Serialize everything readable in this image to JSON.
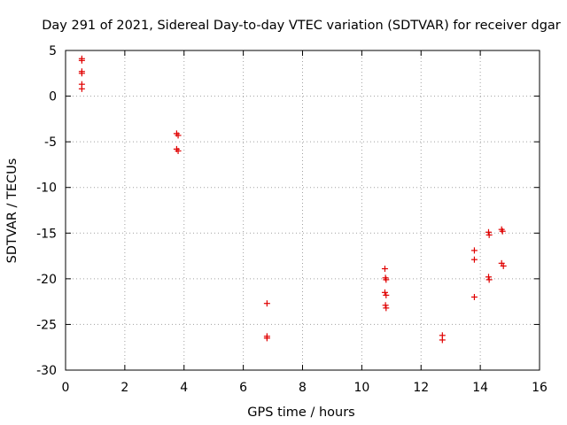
{
  "chart_data": {
    "type": "scatter",
    "title": "Day 291 of 2021, Sidereal Day-to-day VTEC variation (SDTVAR) for receiver dgar",
    "xlabel": "GPS time / hours",
    "ylabel": "SDTVAR / TECUs",
    "xlim": [
      0,
      16
    ],
    "ylim": [
      -30,
      5
    ],
    "xticks": [
      0,
      2,
      4,
      6,
      8,
      10,
      12,
      14,
      16
    ],
    "yticks": [
      -30,
      -25,
      -20,
      -15,
      -10,
      -5,
      0,
      5
    ],
    "xtick_labels": [
      "0",
      "2",
      "4",
      "6",
      "8",
      "10",
      "12",
      "14",
      "16"
    ],
    "ytick_labels": [
      "-30",
      "-25",
      "-20",
      "-15",
      "-10",
      "-5",
      "0",
      "5"
    ],
    "grid": true,
    "marker": "+",
    "color": "#e00000",
    "series": [
      {
        "name": "SDTVAR",
        "points": [
          [
            0.55,
            4.1
          ],
          [
            0.55,
            3.9
          ],
          [
            0.55,
            2.7
          ],
          [
            0.55,
            2.5
          ],
          [
            0.55,
            1.3
          ],
          [
            0.55,
            0.8
          ],
          [
            3.75,
            -4.1
          ],
          [
            3.8,
            -4.3
          ],
          [
            3.75,
            -5.8
          ],
          [
            3.8,
            -6.0
          ],
          [
            6.8,
            -22.7
          ],
          [
            6.8,
            -26.3
          ],
          [
            6.8,
            -26.5
          ],
          [
            10.78,
            -18.9
          ],
          [
            10.8,
            -19.9
          ],
          [
            10.82,
            -20.1
          ],
          [
            10.78,
            -21.5
          ],
          [
            10.82,
            -21.8
          ],
          [
            10.8,
            -22.9
          ],
          [
            10.82,
            -23.2
          ],
          [
            12.72,
            -26.2
          ],
          [
            12.72,
            -26.7
          ],
          [
            13.8,
            -16.9
          ],
          [
            13.8,
            -17.9
          ],
          [
            13.8,
            -22.0
          ],
          [
            14.28,
            -14.9
          ],
          [
            14.3,
            -15.2
          ],
          [
            14.28,
            -19.8
          ],
          [
            14.3,
            -20.1
          ],
          [
            14.72,
            -14.6
          ],
          [
            14.75,
            -14.8
          ],
          [
            14.72,
            -18.3
          ],
          [
            14.78,
            -18.6
          ]
        ]
      }
    ]
  }
}
